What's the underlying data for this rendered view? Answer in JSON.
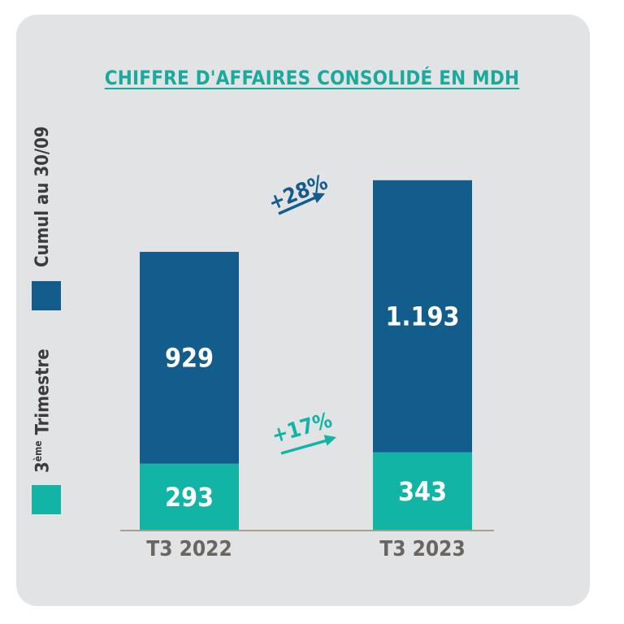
{
  "chart_data": {
    "type": "bar",
    "stacked": true,
    "title": "CHIFFRE D'AFFAIRES CONSOLIDÉ EN MDH",
    "categories": [
      "T3 2022",
      "T3 2023"
    ],
    "series": [
      {
        "name": "3ème Trimestre",
        "values": [
          293,
          343
        ],
        "labels": [
          "293",
          "343"
        ],
        "color": "#12b5a5"
      },
      {
        "name": "Cumul au 30/09",
        "values": [
          929,
          1193
        ],
        "labels": [
          "929",
          "1.193"
        ],
        "color": "#135d8c"
      }
    ],
    "annotations": [
      {
        "text": "+28%",
        "series": "Cumul au 30/09",
        "color": "#135d8c"
      },
      {
        "text": "+17%",
        "series": "3ème Trimestre",
        "color": "#12b5a5"
      }
    ],
    "legend_position": "left",
    "grid": false
  },
  "legend": {
    "quarter_base": "3",
    "quarter_sup": "ème",
    "quarter_rest": " Trimestre",
    "cumul": "Cumul au 30/09"
  },
  "colors": {
    "background": "#e2e3e5",
    "title": "#1aaa9b",
    "axis_text": "#6b6560",
    "baseline": "#a79f8a"
  }
}
